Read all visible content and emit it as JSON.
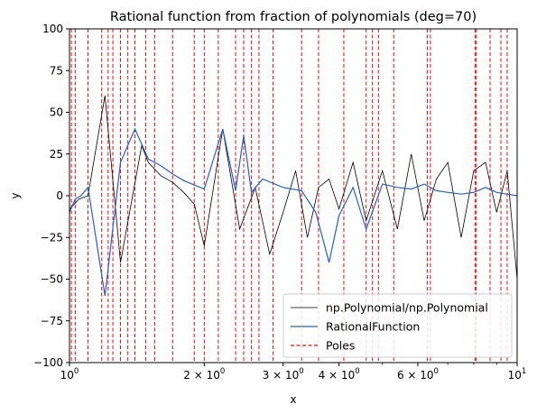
{
  "chart_data": {
    "type": "line",
    "title": "Rational function from fraction of polynomials (deg=70)",
    "xlabel": "x",
    "ylabel": "y",
    "xscale": "log",
    "xlim": [
      1,
      10
    ],
    "ylim": [
      -100,
      100
    ],
    "x_ticks": [
      {
        "value": 1,
        "base": "10",
        "exp": "0"
      },
      {
        "value": 2,
        "base": "2 × 10",
        "exp": "0"
      },
      {
        "value": 3,
        "base": "3 × 10",
        "exp": "0"
      },
      {
        "value": 4,
        "base": "4 × 10",
        "exp": "0"
      },
      {
        "value": 6,
        "base": "6 × 10",
        "exp": "0"
      },
      {
        "value": 10,
        "base": "10",
        "exp": "1"
      }
    ],
    "y_ticks": [
      "100",
      "75",
      "50",
      "25",
      "0",
      "−25",
      "−50",
      "−75",
      "−100"
    ],
    "legend_position": "lower-right",
    "grid": false,
    "series": [
      {
        "name": "np.Polynomial/np.Polynomial",
        "color": "#000000",
        "style": "solid",
        "description_points": "noisy trace oscillating around 0, wild near poles",
        "x": [
          1.0,
          1.05,
          1.1,
          1.2,
          1.3,
          1.45,
          1.5,
          1.6,
          1.7,
          1.8,
          1.9,
          2.0,
          2.2,
          2.4,
          2.6,
          2.8,
          3.0,
          3.2,
          3.4,
          3.6,
          3.8,
          4.0,
          4.3,
          4.6,
          5.0,
          5.4,
          5.8,
          6.2,
          6.6,
          7.0,
          7.5,
          8.0,
          8.5,
          9.0,
          9.5,
          10.0
        ],
        "y": [
          -8,
          -2,
          0,
          60,
          -40,
          30,
          20,
          12,
          8,
          2,
          -5,
          -30,
          40,
          -20,
          5,
          -35,
          -10,
          15,
          -25,
          5,
          10,
          -8,
          20,
          -15,
          15,
          -20,
          25,
          -15,
          10,
          20,
          -25,
          15,
          20,
          -10,
          15,
          -50
        ]
      },
      {
        "name": "RationalFunction",
        "color": "#1f5fe0",
        "style": "solid",
        "x": [
          1.0,
          1.03,
          1.06,
          1.1,
          1.2,
          1.3,
          1.4,
          1.5,
          1.6,
          1.7,
          1.8,
          2.0,
          2.2,
          2.35,
          2.45,
          2.55,
          2.7,
          3.0,
          3.3,
          3.55,
          3.8,
          4.0,
          4.3,
          4.6,
          5.0,
          5.4,
          5.8,
          6.2,
          6.6,
          7.0,
          7.5,
          8.0,
          8.5,
          9.0,
          9.5,
          10.0
        ],
        "y": [
          -10,
          -2,
          0,
          5,
          -60,
          20,
          40,
          22,
          18,
          13,
          9,
          4,
          40,
          3,
          36,
          2,
          10,
          5,
          3,
          -10,
          -40,
          -12,
          5,
          -20,
          7,
          5,
          4,
          7,
          3,
          2,
          1,
          2,
          5,
          2,
          1,
          0
        ]
      },
      {
        "name": "Poles",
        "color": "#ff0000",
        "style": "dashed",
        "type": "vline",
        "x": [
          1.01,
          1.03,
          1.1,
          1.18,
          1.22,
          1.25,
          1.3,
          1.35,
          1.4,
          1.48,
          1.55,
          1.7,
          1.9,
          2.0,
          2.15,
          2.35,
          2.45,
          2.55,
          2.65,
          2.85,
          3.3,
          3.6,
          4.1,
          4.6,
          4.75,
          4.9,
          5.3,
          6.3,
          6.4,
          8.05,
          8.1,
          8.7,
          9.2,
          9.5
        ]
      }
    ]
  }
}
